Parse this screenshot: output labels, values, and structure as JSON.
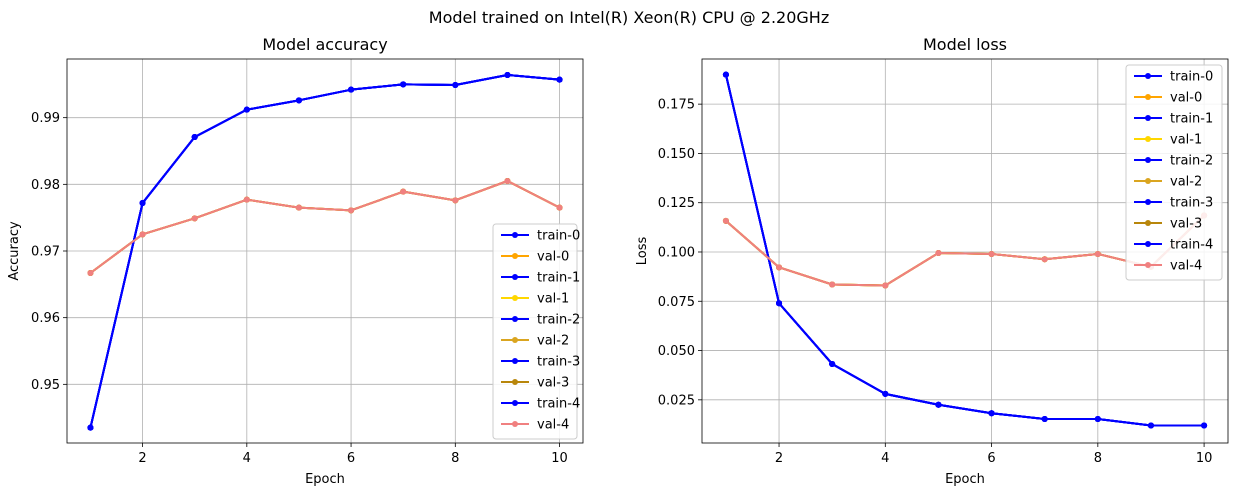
{
  "figure": {
    "suptitle": "Model trained on Intel(R) Xeon(R) CPU @ 2.20GHz"
  },
  "chart_data": [
    {
      "type": "line",
      "title": "Model accuracy",
      "xlabel": "Epoch",
      "ylabel": "Accuracy",
      "x": [
        1,
        2,
        3,
        4,
        5,
        6,
        7,
        8,
        9,
        10
      ],
      "xlim": [
        0.55,
        10.45
      ],
      "ylim": [
        0.9412,
        0.9988
      ],
      "xticks": [
        2,
        4,
        6,
        8,
        10
      ],
      "xtick_labels": [
        "2",
        "4",
        "6",
        "8",
        "10"
      ],
      "yticks": [
        0.95,
        0.96,
        0.97,
        0.98,
        0.99
      ],
      "ytick_labels": [
        "0.95",
        "0.96",
        "0.97",
        "0.98",
        "0.99"
      ],
      "grid": true,
      "legend_position": "lower-right",
      "series": [
        {
          "name": "train-0",
          "color": "#0000ff",
          "values": [
            0.9435,
            0.9772,
            0.9871,
            0.9912,
            0.9926,
            0.9942,
            0.995,
            0.9949,
            0.9964,
            0.9957
          ]
        },
        {
          "name": "val-0",
          "color": "#ffa500",
          "values": [
            0.9667,
            0.9725,
            0.9749,
            0.9777,
            0.9765,
            0.9761,
            0.9789,
            0.9776,
            0.9805,
            0.9765
          ]
        },
        {
          "name": "train-1",
          "color": "#0000ff",
          "values": [
            0.9435,
            0.9772,
            0.9871,
            0.9912,
            0.9926,
            0.9942,
            0.995,
            0.9949,
            0.9964,
            0.9957
          ]
        },
        {
          "name": "val-1",
          "color": "#ffd700",
          "values": [
            0.9667,
            0.9725,
            0.9749,
            0.9777,
            0.9765,
            0.9761,
            0.9789,
            0.9776,
            0.9805,
            0.9765
          ]
        },
        {
          "name": "train-2",
          "color": "#0000ff",
          "values": [
            0.9435,
            0.9772,
            0.9871,
            0.9912,
            0.9926,
            0.9942,
            0.995,
            0.9949,
            0.9964,
            0.9957
          ]
        },
        {
          "name": "val-2",
          "color": "#daa520",
          "values": [
            0.9667,
            0.9725,
            0.9749,
            0.9777,
            0.9765,
            0.9761,
            0.9789,
            0.9776,
            0.9805,
            0.9765
          ]
        },
        {
          "name": "train-3",
          "color": "#0000ff",
          "values": [
            0.9435,
            0.9772,
            0.9871,
            0.9912,
            0.9926,
            0.9942,
            0.995,
            0.9949,
            0.9964,
            0.9957
          ]
        },
        {
          "name": "val-3",
          "color": "#b8860b",
          "values": [
            0.9667,
            0.9725,
            0.9749,
            0.9777,
            0.9765,
            0.9761,
            0.9789,
            0.9776,
            0.9805,
            0.9765
          ]
        },
        {
          "name": "train-4",
          "color": "#0000ff",
          "values": [
            0.9435,
            0.9772,
            0.9871,
            0.9912,
            0.9926,
            0.9942,
            0.995,
            0.9949,
            0.9964,
            0.9957
          ]
        },
        {
          "name": "val-4",
          "color": "#f08080",
          "values": [
            0.9667,
            0.9725,
            0.9749,
            0.9777,
            0.9765,
            0.9761,
            0.9789,
            0.9776,
            0.9805,
            0.9765
          ]
        }
      ]
    },
    {
      "type": "line",
      "title": "Model loss",
      "xlabel": "Epoch",
      "ylabel": "Loss",
      "x": [
        1,
        2,
        3,
        4,
        5,
        6,
        7,
        8,
        9,
        10
      ],
      "xlim": [
        0.55,
        10.45
      ],
      "ylim": [
        0.0031,
        0.1979
      ],
      "xticks": [
        2,
        4,
        6,
        8,
        10
      ],
      "xtick_labels": [
        "2",
        "4",
        "6",
        "8",
        "10"
      ],
      "yticks": [
        0.025,
        0.05,
        0.075,
        0.1,
        0.125,
        0.15,
        0.175
      ],
      "ytick_labels": [
        "0.025",
        "0.050",
        "0.075",
        "0.100",
        "0.125",
        "0.150",
        "0.175"
      ],
      "grid": true,
      "legend_position": "upper-right",
      "series": [
        {
          "name": "train-0",
          "color": "#0000ff",
          "values": [
            0.19,
            0.074,
            0.0432,
            0.028,
            0.0225,
            0.0182,
            0.0153,
            0.0153,
            0.012,
            0.012
          ]
        },
        {
          "name": "val-0",
          "color": "#ffa500",
          "values": [
            0.1158,
            0.0922,
            0.0835,
            0.083,
            0.0995,
            0.099,
            0.0963,
            0.099,
            0.0925,
            0.1185
          ]
        },
        {
          "name": "train-1",
          "color": "#0000ff",
          "values": [
            0.19,
            0.074,
            0.0432,
            0.028,
            0.0225,
            0.0182,
            0.0153,
            0.0153,
            0.012,
            0.012
          ]
        },
        {
          "name": "val-1",
          "color": "#ffd700",
          "values": [
            0.1158,
            0.0922,
            0.0835,
            0.083,
            0.0995,
            0.099,
            0.0963,
            0.099,
            0.0925,
            0.1185
          ]
        },
        {
          "name": "train-2",
          "color": "#0000ff",
          "values": [
            0.19,
            0.074,
            0.0432,
            0.028,
            0.0225,
            0.0182,
            0.0153,
            0.0153,
            0.012,
            0.012
          ]
        },
        {
          "name": "val-2",
          "color": "#daa520",
          "values": [
            0.1158,
            0.0922,
            0.0835,
            0.083,
            0.0995,
            0.099,
            0.0963,
            0.099,
            0.0925,
            0.1185
          ]
        },
        {
          "name": "train-3",
          "color": "#0000ff",
          "values": [
            0.19,
            0.074,
            0.0432,
            0.028,
            0.0225,
            0.0182,
            0.0153,
            0.0153,
            0.012,
            0.012
          ]
        },
        {
          "name": "val-3",
          "color": "#b8860b",
          "values": [
            0.1158,
            0.0922,
            0.0835,
            0.083,
            0.0995,
            0.099,
            0.0963,
            0.099,
            0.0925,
            0.1185
          ]
        },
        {
          "name": "train-4",
          "color": "#0000ff",
          "values": [
            0.19,
            0.074,
            0.0432,
            0.028,
            0.0225,
            0.0182,
            0.0153,
            0.0153,
            0.012,
            0.012
          ]
        },
        {
          "name": "val-4",
          "color": "#f08080",
          "values": [
            0.1158,
            0.0922,
            0.0835,
            0.083,
            0.0995,
            0.099,
            0.0963,
            0.099,
            0.0925,
            0.1185
          ]
        }
      ]
    }
  ]
}
